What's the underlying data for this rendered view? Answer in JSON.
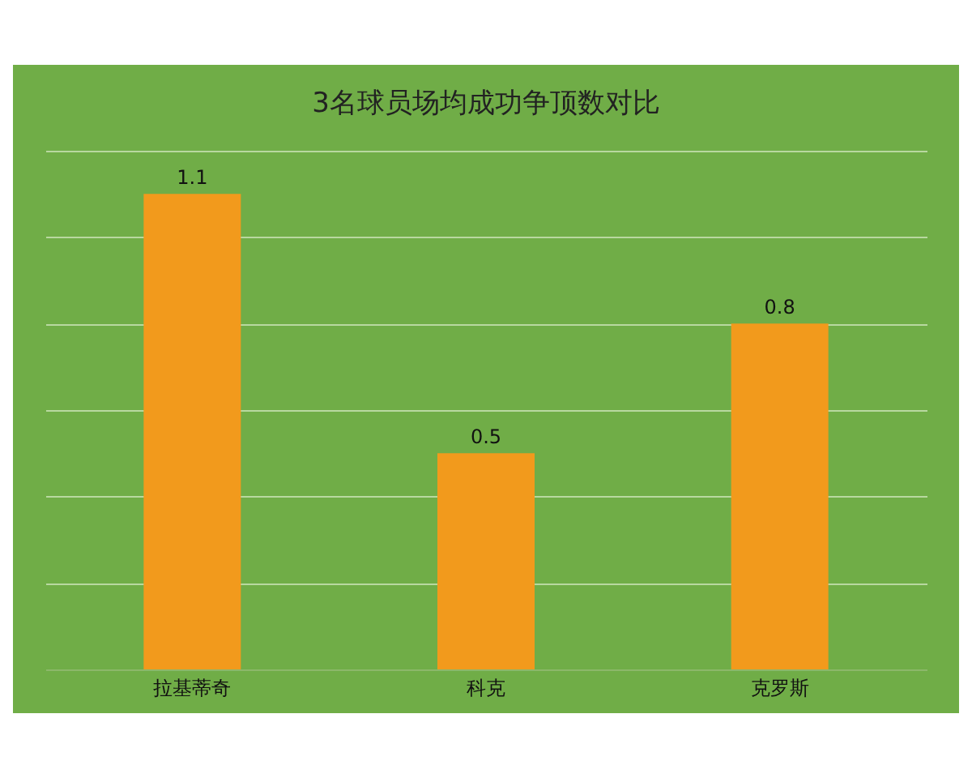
{
  "chart_data": {
    "type": "bar",
    "title": "3名球员场均成功争顶数对比",
    "categories": [
      "拉基蒂奇",
      "科克",
      "克罗斯"
    ],
    "values": [
      1.1,
      0.5,
      0.8
    ],
    "color": "#f29a1c",
    "ylim": [
      0,
      1.2
    ],
    "yticks": [
      {
        "value": 0.2,
        "label": null
      },
      {
        "value": 0.4,
        "label": null
      },
      {
        "value": 0.6,
        "label": null
      },
      {
        "value": 0.8,
        "label": null
      },
      {
        "value": 1.0,
        "label": null
      },
      {
        "value": 1.2,
        "label": null
      }
    ],
    "tick_labels": "x",
    "grid": "y",
    "data_labels": true
  }
}
